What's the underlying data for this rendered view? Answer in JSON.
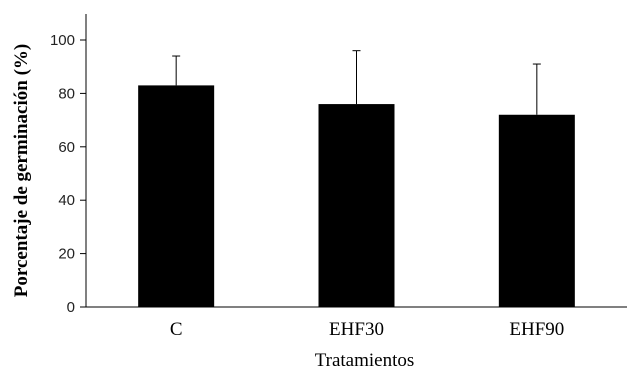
{
  "chart_data": {
    "type": "bar",
    "categories": [
      "C",
      "EHF30",
      "EHF90"
    ],
    "values": [
      83,
      76,
      72
    ],
    "error_upper": [
      94,
      96,
      91
    ],
    "xlabel": "Tratamientos",
    "ylabel": "Porcentaje de germinación (%)",
    "ylim": [
      0,
      100
    ],
    "yticks": [
      0,
      20,
      40,
      60,
      80,
      100
    ],
    "grid": false,
    "legend": "none",
    "bar_color": "#000000",
    "axis_color": "#000000"
  }
}
